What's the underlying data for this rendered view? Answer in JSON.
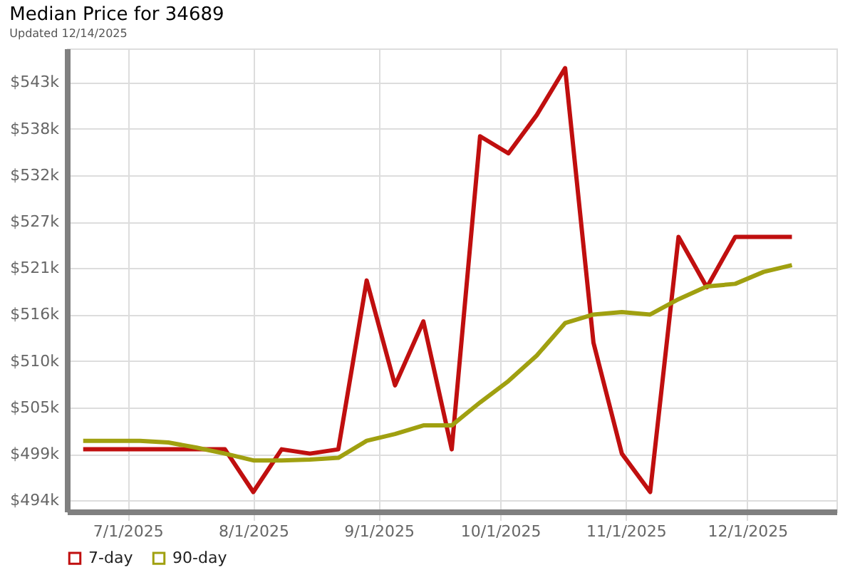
{
  "chart_data": {
    "type": "line",
    "title": "Median Price for 34689",
    "subtitle": "Updated 12/14/2025",
    "x": [
      "2025-06-20",
      "2025-06-27",
      "2025-07-04",
      "2025-07-11",
      "2025-07-18",
      "2025-07-25",
      "2025-08-01",
      "2025-08-08",
      "2025-08-15",
      "2025-08-22",
      "2025-08-29",
      "2025-09-05",
      "2025-09-12",
      "2025-09-19",
      "2025-09-26",
      "2025-10-03",
      "2025-10-10",
      "2025-10-17",
      "2025-10-24",
      "2025-10-31",
      "2025-11-07",
      "2025-11-14",
      "2025-11-21",
      "2025-11-28",
      "2025-12-05",
      "2025-12-12"
    ],
    "series": [
      {
        "name": "7-day",
        "color": "#c00f0f",
        "values": [
          500000,
          500000,
          500000,
          500000,
          500000,
          500000,
          495000,
          500000,
          499500,
          500000,
          519800,
          507500,
          515000,
          500000,
          536700,
          534700,
          539200,
          544700,
          512500,
          499500,
          495000,
          524900,
          519000,
          524900,
          524900,
          524900
        ]
      },
      {
        "name": "90-day",
        "color": "#a0a010",
        "values": [
          501000,
          501000,
          501000,
          500800,
          500200,
          499500,
          498700,
          498700,
          498800,
          499000,
          501000,
          501800,
          502800,
          502800,
          505500,
          508000,
          511000,
          514800,
          515800,
          516100,
          515800,
          517600,
          519100,
          519400,
          520800,
          521600
        ]
      }
    ],
    "xlim": [
      "2025-06-16",
      "2025-12-23"
    ],
    "xticks": [
      {
        "value": "2025-07-01",
        "label": "7/1/2025"
      },
      {
        "value": "2025-08-01",
        "label": "8/1/2025"
      },
      {
        "value": "2025-09-01",
        "label": "9/1/2025"
      },
      {
        "value": "2025-10-01",
        "label": "10/1/2025"
      },
      {
        "value": "2025-11-01",
        "label": "11/1/2025"
      },
      {
        "value": "2025-12-01",
        "label": "12/1/2025"
      }
    ],
    "ylim": [
      492700,
      547000
    ],
    "yticks": [
      {
        "value": 494000,
        "label": "$494k"
      },
      {
        "value": 499450,
        "label": "$499k"
      },
      {
        "value": 504900,
        "label": "$505k"
      },
      {
        "value": 510350,
        "label": "$510k"
      },
      {
        "value": 515800,
        "label": "$516k"
      },
      {
        "value": 521250,
        "label": "$521k"
      },
      {
        "value": 526700,
        "label": "$527k"
      },
      {
        "value": 532150,
        "label": "$532k"
      },
      {
        "value": 537600,
        "label": "$538k"
      },
      {
        "value": 543050,
        "label": "$543k"
      }
    ],
    "grid": true,
    "legend": "bottom left",
    "marker": "none",
    "line_style": "solid"
  }
}
